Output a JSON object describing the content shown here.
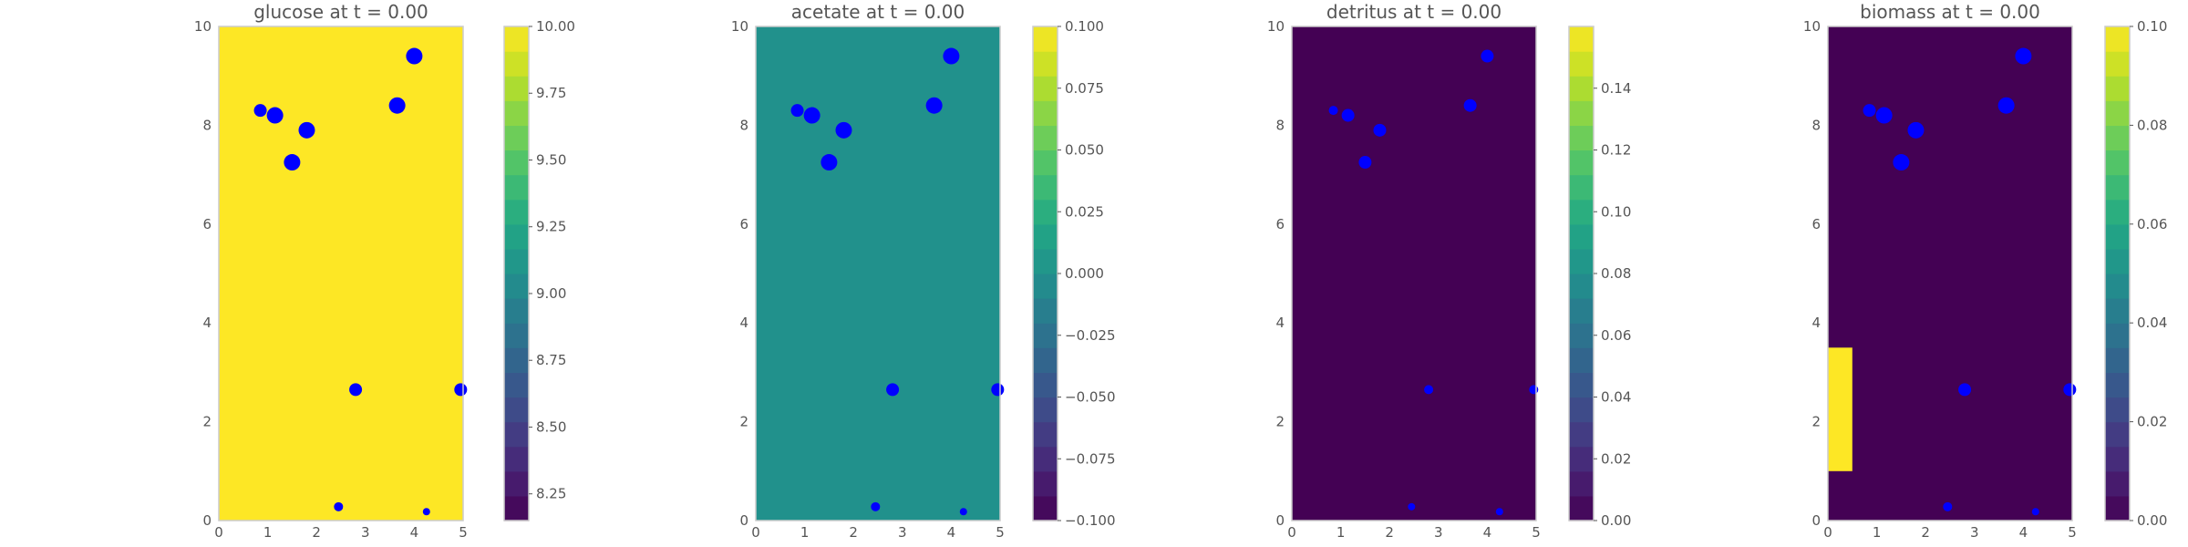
{
  "chart_data": [
    {
      "type": "heatmap",
      "title": "glucose at t = 0.00",
      "xlim": [
        0,
        5
      ],
      "ylim": [
        0,
        10
      ],
      "xticks": [
        "0",
        "1",
        "2",
        "3",
        "4",
        "5"
      ],
      "yticks": [
        "0",
        "2",
        "4",
        "6",
        "8",
        "10"
      ],
      "field": {
        "uniform_value": 10.0,
        "regions": []
      },
      "colorbar": {
        "range": [
          8.15,
          10.0
        ],
        "tick_values": [
          8.25,
          8.5,
          8.75,
          9.0,
          9.25,
          9.5,
          9.75,
          10.0
        ],
        "tick_labels": [
          "8.25",
          "8.50",
          "8.75",
          "9.00",
          "9.25",
          "9.50",
          "9.75",
          "10.00"
        ],
        "levels": 20
      },
      "markers": [
        {
          "x": 0.85,
          "y": 8.3,
          "size": "medium"
        },
        {
          "x": 1.15,
          "y": 8.2,
          "size": "large"
        },
        {
          "x": 1.8,
          "y": 7.9,
          "size": "large"
        },
        {
          "x": 1.5,
          "y": 7.25,
          "size": "large"
        },
        {
          "x": 3.65,
          "y": 8.4,
          "size": "large"
        },
        {
          "x": 4.0,
          "y": 9.4,
          "size": "large"
        },
        {
          "x": 2.8,
          "y": 2.65,
          "size": "medium"
        },
        {
          "x": 4.95,
          "y": 2.65,
          "size": "medium"
        },
        {
          "x": 2.45,
          "y": 0.28,
          "size": "small"
        },
        {
          "x": 4.25,
          "y": 0.18,
          "size": "tiny"
        }
      ],
      "marker_color": "#0000ff"
    },
    {
      "type": "heatmap",
      "title": "acetate at t = 0.00",
      "xlim": [
        0,
        5
      ],
      "ylim": [
        0,
        10
      ],
      "xticks": [
        "0",
        "1",
        "2",
        "3",
        "4",
        "5"
      ],
      "yticks": [
        "0",
        "2",
        "4",
        "6",
        "8",
        "10"
      ],
      "field": {
        "uniform_value": 0.0,
        "regions": []
      },
      "colorbar": {
        "range": [
          -0.1,
          0.1
        ],
        "tick_values": [
          -0.1,
          -0.075,
          -0.05,
          -0.025,
          0.0,
          0.025,
          0.05,
          0.075,
          0.1
        ],
        "tick_labels": [
          "−0.100",
          "−0.075",
          "−0.050",
          "−0.025",
          "0.000",
          "0.025",
          "0.050",
          "0.075",
          "0.100"
        ],
        "levels": 20
      },
      "markers": [
        {
          "x": 0.85,
          "y": 8.3,
          "size": "medium"
        },
        {
          "x": 1.15,
          "y": 8.2,
          "size": "large"
        },
        {
          "x": 1.8,
          "y": 7.9,
          "size": "large"
        },
        {
          "x": 1.5,
          "y": 7.25,
          "size": "large"
        },
        {
          "x": 3.65,
          "y": 8.4,
          "size": "large"
        },
        {
          "x": 4.0,
          "y": 9.4,
          "size": "large"
        },
        {
          "x": 2.8,
          "y": 2.65,
          "size": "medium"
        },
        {
          "x": 4.95,
          "y": 2.65,
          "size": "medium"
        },
        {
          "x": 2.45,
          "y": 0.28,
          "size": "small"
        },
        {
          "x": 4.25,
          "y": 0.18,
          "size": "tiny"
        }
      ],
      "marker_color": "#0000ff"
    },
    {
      "type": "heatmap",
      "title": "detritus at t = 0.00",
      "xlim": [
        0,
        5
      ],
      "ylim": [
        0,
        10
      ],
      "xticks": [
        "0",
        "1",
        "2",
        "3",
        "4",
        "5"
      ],
      "yticks": [
        "0",
        "2",
        "4",
        "6",
        "8",
        "10"
      ],
      "field": {
        "uniform_value": 0.0,
        "regions": []
      },
      "colorbar": {
        "range": [
          0.0,
          0.16
        ],
        "tick_values": [
          0.0,
          0.02,
          0.04,
          0.06,
          0.08,
          0.1,
          0.12,
          0.14
        ],
        "tick_labels": [
          "0.00",
          "0.02",
          "0.04",
          "0.06",
          "0.08",
          "0.10",
          "0.12",
          "0.14"
        ],
        "levels": 20
      },
      "markers": [
        {
          "x": 0.85,
          "y": 8.3,
          "size": "small"
        },
        {
          "x": 1.15,
          "y": 8.2,
          "size": "medium"
        },
        {
          "x": 1.8,
          "y": 7.9,
          "size": "medium"
        },
        {
          "x": 1.5,
          "y": 7.25,
          "size": "medium"
        },
        {
          "x": 3.65,
          "y": 8.4,
          "size": "medium"
        },
        {
          "x": 4.0,
          "y": 9.4,
          "size": "medium"
        },
        {
          "x": 2.8,
          "y": 2.65,
          "size": "small"
        },
        {
          "x": 4.95,
          "y": 2.65,
          "size": "small"
        },
        {
          "x": 2.45,
          "y": 0.28,
          "size": "tiny"
        },
        {
          "x": 4.25,
          "y": 0.18,
          "size": "tiny"
        }
      ],
      "marker_color": "#0000ff"
    },
    {
      "type": "heatmap",
      "title": "biomass at t = 0.00",
      "xlim": [
        0,
        5
      ],
      "ylim": [
        0,
        10
      ],
      "xticks": [
        "0",
        "1",
        "2",
        "3",
        "4",
        "5"
      ],
      "yticks": [
        "0",
        "2",
        "4",
        "6",
        "8",
        "10"
      ],
      "field": {
        "uniform_value": 0.0,
        "regions": [
          {
            "x0": 0.0,
            "x1": 0.5,
            "y0": 1.0,
            "y1": 3.5,
            "value": 0.1
          }
        ]
      },
      "colorbar": {
        "range": [
          0.0,
          0.1
        ],
        "tick_values": [
          0.0,
          0.02,
          0.04,
          0.06,
          0.08,
          0.1
        ],
        "tick_labels": [
          "0.00",
          "0.02",
          "0.04",
          "0.06",
          "0.08",
          "0.10"
        ],
        "levels": 20
      },
      "markers": [
        {
          "x": 0.85,
          "y": 8.3,
          "size": "medium"
        },
        {
          "x": 1.15,
          "y": 8.2,
          "size": "large"
        },
        {
          "x": 1.8,
          "y": 7.9,
          "size": "large"
        },
        {
          "x": 1.5,
          "y": 7.25,
          "size": "large"
        },
        {
          "x": 3.65,
          "y": 8.4,
          "size": "large"
        },
        {
          "x": 4.0,
          "y": 9.4,
          "size": "large"
        },
        {
          "x": 2.8,
          "y": 2.65,
          "size": "medium"
        },
        {
          "x": 4.95,
          "y": 2.65,
          "size": "medium"
        },
        {
          "x": 2.45,
          "y": 0.28,
          "size": "small"
        },
        {
          "x": 4.25,
          "y": 0.18,
          "size": "tiny"
        }
      ],
      "marker_color": "#0000ff"
    }
  ]
}
